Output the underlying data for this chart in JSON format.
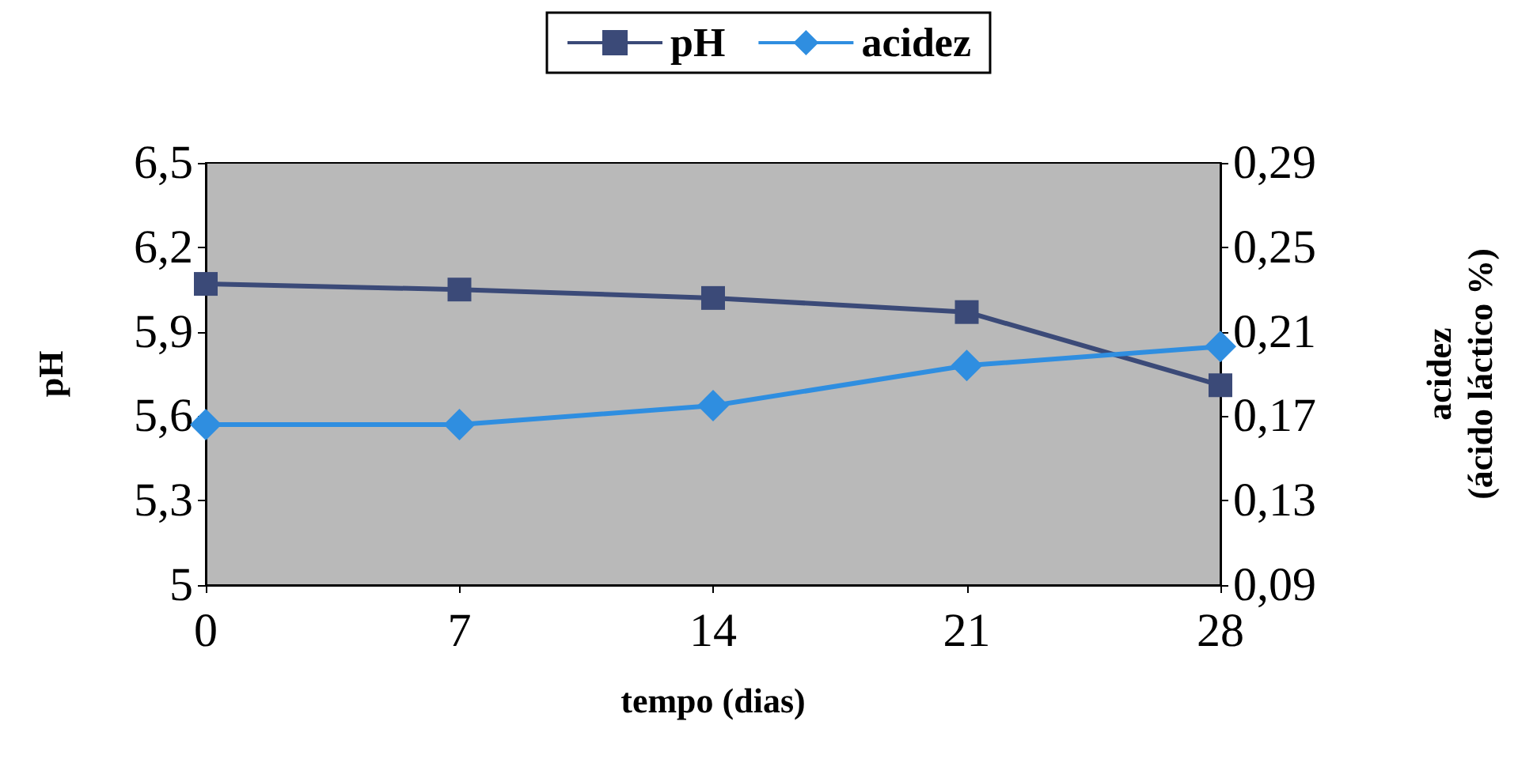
{
  "chart_data": {
    "type": "line",
    "xlabel": "tempo (dias)",
    "ylabel": "pH",
    "y2label": "acidez\n(ácido láctico %)",
    "x": [
      0,
      7,
      14,
      21,
      28
    ],
    "xlim": [
      0,
      28
    ],
    "xticks": [
      0,
      7,
      14,
      21,
      28
    ],
    "ylim": [
      5,
      6.5
    ],
    "yticks": [
      {
        "value": 5,
        "label": "5"
      },
      {
        "value": 5.3,
        "label": "5,3"
      },
      {
        "value": 5.6,
        "label": "5,6"
      },
      {
        "value": 5.9,
        "label": "5,9"
      },
      {
        "value": 6.2,
        "label": "6,2"
      },
      {
        "value": 6.5,
        "label": "6,5"
      }
    ],
    "y2lim": [
      0.09,
      0.29
    ],
    "y2ticks": [
      {
        "value": 0.09,
        "label": "0,09"
      },
      {
        "value": 0.13,
        "label": "0,13"
      },
      {
        "value": 0.17,
        "label": "0,17"
      },
      {
        "value": 0.21,
        "label": "0,21"
      },
      {
        "value": 0.25,
        "label": "0,25"
      },
      {
        "value": 0.29,
        "label": "0,29"
      }
    ],
    "series": [
      {
        "name": "pH",
        "color": "#3b4a78",
        "marker": "square",
        "values": [
          6.07,
          6.05,
          6.02,
          5.97,
          5.71
        ]
      },
      {
        "name": "acidez",
        "color": "#2f8ee0",
        "marker": "diamond",
        "axis": "y2",
        "values": [
          0.166,
          0.166,
          0.175,
          0.194,
          0.203
        ]
      }
    ],
    "legend": "top",
    "grid": false
  }
}
